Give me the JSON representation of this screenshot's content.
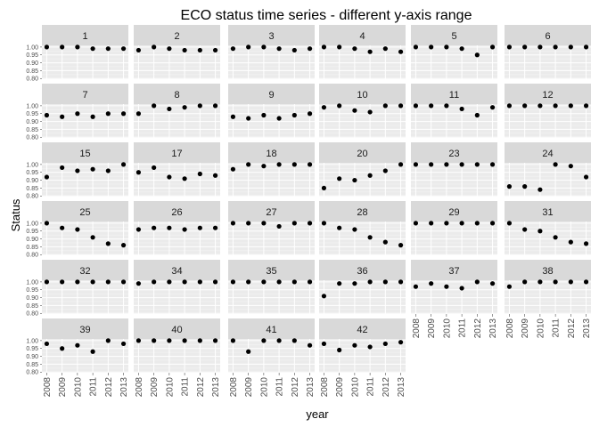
{
  "chart_data": {
    "type": "scatter",
    "title": "ECO status time series - different y-axis range",
    "xlabel": "year",
    "ylabel": "Status",
    "x": [
      2008,
      2009,
      2010,
      2011,
      2012,
      2013
    ],
    "x_tick_labels": [
      "2008",
      "2009",
      "2010",
      "2011",
      "2012",
      "2013"
    ],
    "ylim": [
      0.8,
      1.0
    ],
    "y_ticks": [
      0.8,
      0.85,
      0.9,
      0.95,
      1.0
    ],
    "y_tick_labels": [
      "0.80",
      "0.85",
      "0.90",
      "0.95",
      "1.00"
    ],
    "grid": true,
    "facet_columns": 6,
    "colors": {
      "panel_bg": "#ebebeb",
      "strip_bg": "#d9d9d9",
      "grid_major": "#ffffff",
      "grid_minor": "#f5f5f5",
      "point": "#000000",
      "axis_text": "#4d4d4d"
    },
    "panels": [
      {
        "label": "1",
        "values": [
          1.0,
          1.0,
          1.0,
          0.99,
          0.99,
          0.99
        ]
      },
      {
        "label": "2",
        "values": [
          0.98,
          1.0,
          0.99,
          0.98,
          0.98,
          0.98
        ]
      },
      {
        "label": "3",
        "values": [
          0.99,
          1.0,
          1.0,
          0.99,
          0.98,
          0.99
        ]
      },
      {
        "label": "4",
        "values": [
          1.0,
          1.0,
          0.99,
          0.97,
          0.99,
          0.97
        ]
      },
      {
        "label": "5",
        "values": [
          1.0,
          1.0,
          1.0,
          0.99,
          0.95,
          1.0
        ]
      },
      {
        "label": "6",
        "values": [
          1.0,
          1.0,
          1.0,
          1.0,
          1.0,
          1.0
        ]
      },
      {
        "label": "7",
        "values": [
          0.94,
          0.93,
          0.95,
          0.93,
          0.95,
          0.95
        ]
      },
      {
        "label": "8",
        "values": [
          0.95,
          1.0,
          0.98,
          0.99,
          1.0,
          1.0
        ]
      },
      {
        "label": "9",
        "values": [
          0.93,
          0.92,
          0.94,
          0.92,
          0.94,
          0.95
        ]
      },
      {
        "label": "10",
        "values": [
          0.99,
          1.0,
          0.97,
          0.96,
          1.0,
          1.0
        ]
      },
      {
        "label": "11",
        "values": [
          1.0,
          1.0,
          1.0,
          0.98,
          0.94,
          0.99
        ]
      },
      {
        "label": "12",
        "values": [
          1.0,
          1.0,
          1.0,
          1.0,
          1.0,
          1.0
        ]
      },
      {
        "label": "15",
        "values": [
          0.92,
          0.98,
          0.96,
          0.97,
          0.96,
          1.0
        ]
      },
      {
        "label": "17",
        "values": [
          0.95,
          0.98,
          0.92,
          0.91,
          0.94,
          0.93
        ]
      },
      {
        "label": "18",
        "values": [
          0.97,
          1.0,
          0.99,
          1.0,
          1.0,
          1.0
        ]
      },
      {
        "label": "20",
        "values": [
          0.85,
          0.91,
          0.9,
          0.93,
          0.96,
          1.0
        ]
      },
      {
        "label": "23",
        "values": [
          1.0,
          1.0,
          1.0,
          1.0,
          1.0,
          1.0
        ]
      },
      {
        "label": "24",
        "values": [
          0.86,
          0.86,
          0.84,
          1.0,
          0.99,
          0.92
        ]
      },
      {
        "label": "25",
        "values": [
          1.0,
          0.97,
          0.96,
          0.91,
          0.87,
          0.86
        ]
      },
      {
        "label": "26",
        "values": [
          0.96,
          0.97,
          0.97,
          0.96,
          0.97,
          0.97
        ]
      },
      {
        "label": "27",
        "values": [
          1.0,
          1.0,
          1.0,
          0.98,
          1.0,
          1.0
        ]
      },
      {
        "label": "28",
        "values": [
          1.0,
          0.97,
          0.96,
          0.91,
          0.88,
          0.86
        ]
      },
      {
        "label": "29",
        "values": [
          1.0,
          1.0,
          1.0,
          1.0,
          1.0,
          1.0
        ]
      },
      {
        "label": "31",
        "values": [
          1.0,
          0.96,
          0.95,
          0.91,
          0.88,
          0.87
        ]
      },
      {
        "label": "32",
        "values": [
          1.0,
          1.0,
          1.0,
          1.0,
          1.0,
          1.0
        ]
      },
      {
        "label": "34",
        "values": [
          0.99,
          1.0,
          1.0,
          1.0,
          1.0,
          1.0
        ]
      },
      {
        "label": "35",
        "values": [
          1.0,
          1.0,
          1.0,
          1.0,
          1.0,
          1.0
        ]
      },
      {
        "label": "36",
        "values": [
          0.91,
          0.99,
          0.99,
          1.0,
          1.0,
          1.0
        ]
      },
      {
        "label": "37",
        "values": [
          0.97,
          0.99,
          0.97,
          0.96,
          1.0,
          0.99
        ]
      },
      {
        "label": "38",
        "values": [
          0.97,
          1.0,
          1.0,
          1.0,
          1.0,
          1.0
        ]
      },
      {
        "label": "39",
        "values": [
          0.98,
          0.95,
          0.97,
          0.93,
          1.0,
          0.98
        ]
      },
      {
        "label": "40",
        "values": [
          1.0,
          1.0,
          1.0,
          1.0,
          1.0,
          1.0
        ]
      },
      {
        "label": "41",
        "values": [
          1.0,
          0.93,
          1.0,
          1.0,
          1.0,
          0.97
        ]
      },
      {
        "label": "42",
        "values": [
          0.98,
          0.94,
          0.97,
          0.96,
          0.98,
          0.99
        ]
      }
    ]
  }
}
